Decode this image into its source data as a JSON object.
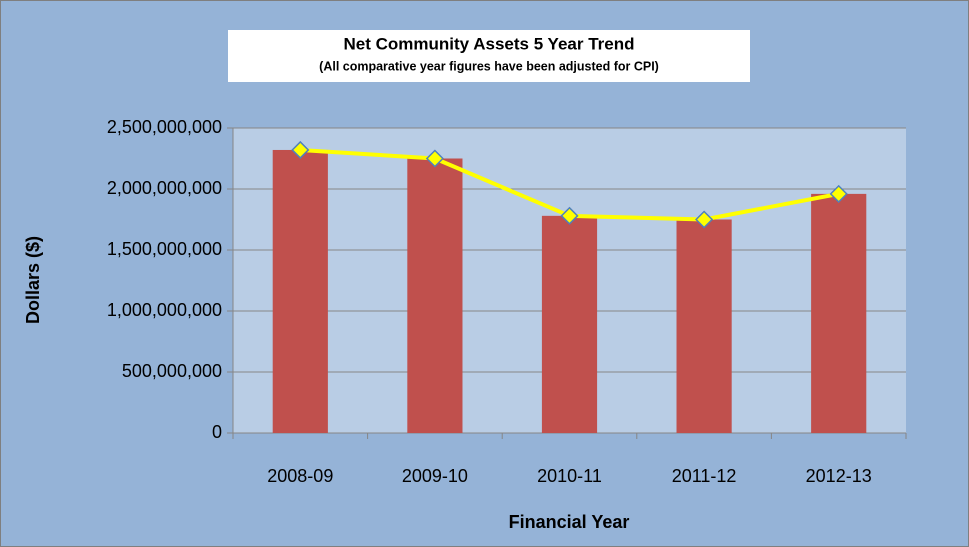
{
  "chart_data": {
    "type": "bar",
    "title": "Net Community Assets 5 Year Trend",
    "subtitle": "(All comparative year figures have been adjusted for CPI)",
    "xlabel": "Financial Year",
    "ylabel": "Dollars ($)",
    "categories": [
      "2008-09",
      "2009-10",
      "2010-11",
      "2011-12",
      "2012-13"
    ],
    "series": [
      {
        "type": "bar",
        "color": "#c0504d",
        "values": [
          2320000000,
          2250000000,
          1780000000,
          1750000000,
          1960000000
        ]
      },
      {
        "type": "line",
        "color": "#ffff00",
        "values": [
          2320000000,
          2250000000,
          1780000000,
          1750000000,
          1960000000
        ]
      }
    ],
    "ylim": [
      0,
      2500000000
    ],
    "yticks": [
      0,
      {
        "value": 500000000,
        "label": "500,000,000"
      },
      {
        "value": 1000000000,
        "label": "1,000,000,000"
      },
      {
        "value": 1500000000,
        "label": "1,500,000,000"
      },
      {
        "value": 2000000000,
        "label": "2,000,000,000"
      },
      {
        "value": 2500000000,
        "label": "2,500,000,000"
      }
    ],
    "grid": true
  }
}
